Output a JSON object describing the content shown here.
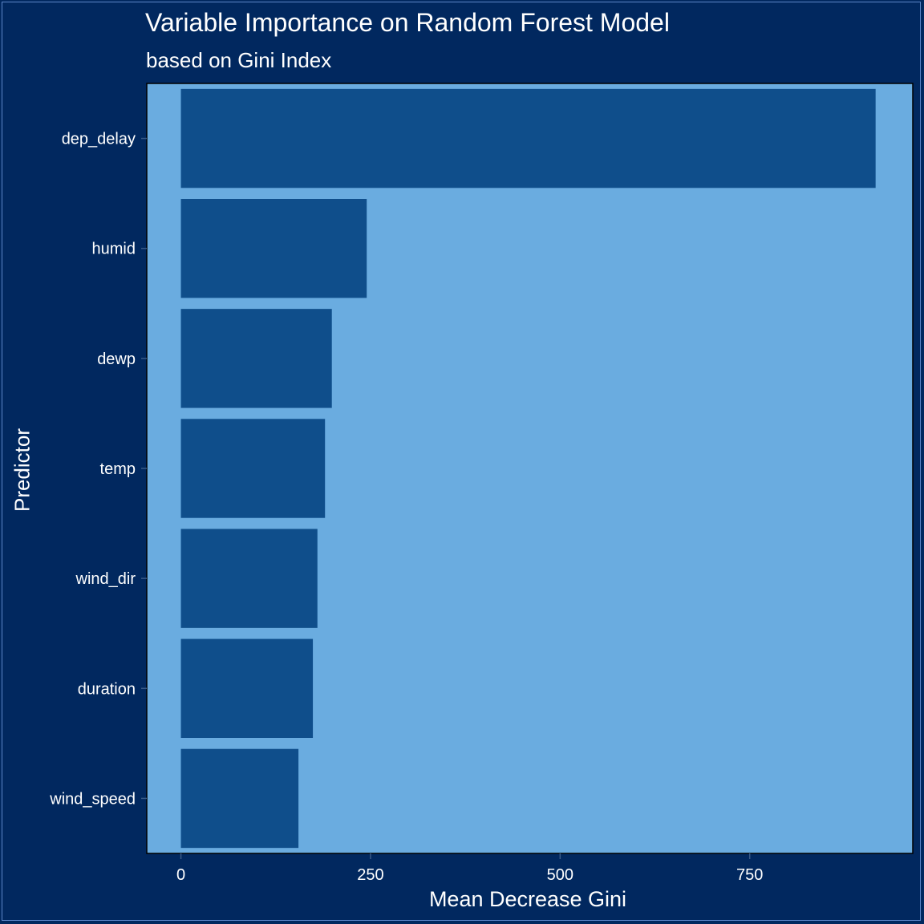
{
  "chart_data": {
    "type": "bar",
    "orientation": "horizontal",
    "title": "Variable Importance on Random Forest Model",
    "subtitle": "based on Gini Index",
    "xlabel": "Mean Decrease Gini",
    "ylabel": "Predictor",
    "categories": [
      "dep_delay",
      "humid",
      "dewp",
      "temp",
      "wind_dir",
      "duration",
      "wind_speed"
    ],
    "values": [
      916,
      245,
      199,
      190,
      180,
      174,
      155
    ],
    "xlim": [
      -45,
      965
    ],
    "x_ticks": [
      0,
      250,
      500,
      750
    ],
    "x_tick_labels": [
      "0",
      "250",
      "500",
      "750"
    ],
    "grid": false,
    "colors": {
      "background": "#01285f",
      "panel": "#6aace0",
      "bar": "#0f4e8b",
      "panel_border": "#000000",
      "text": "#ffffff"
    }
  }
}
